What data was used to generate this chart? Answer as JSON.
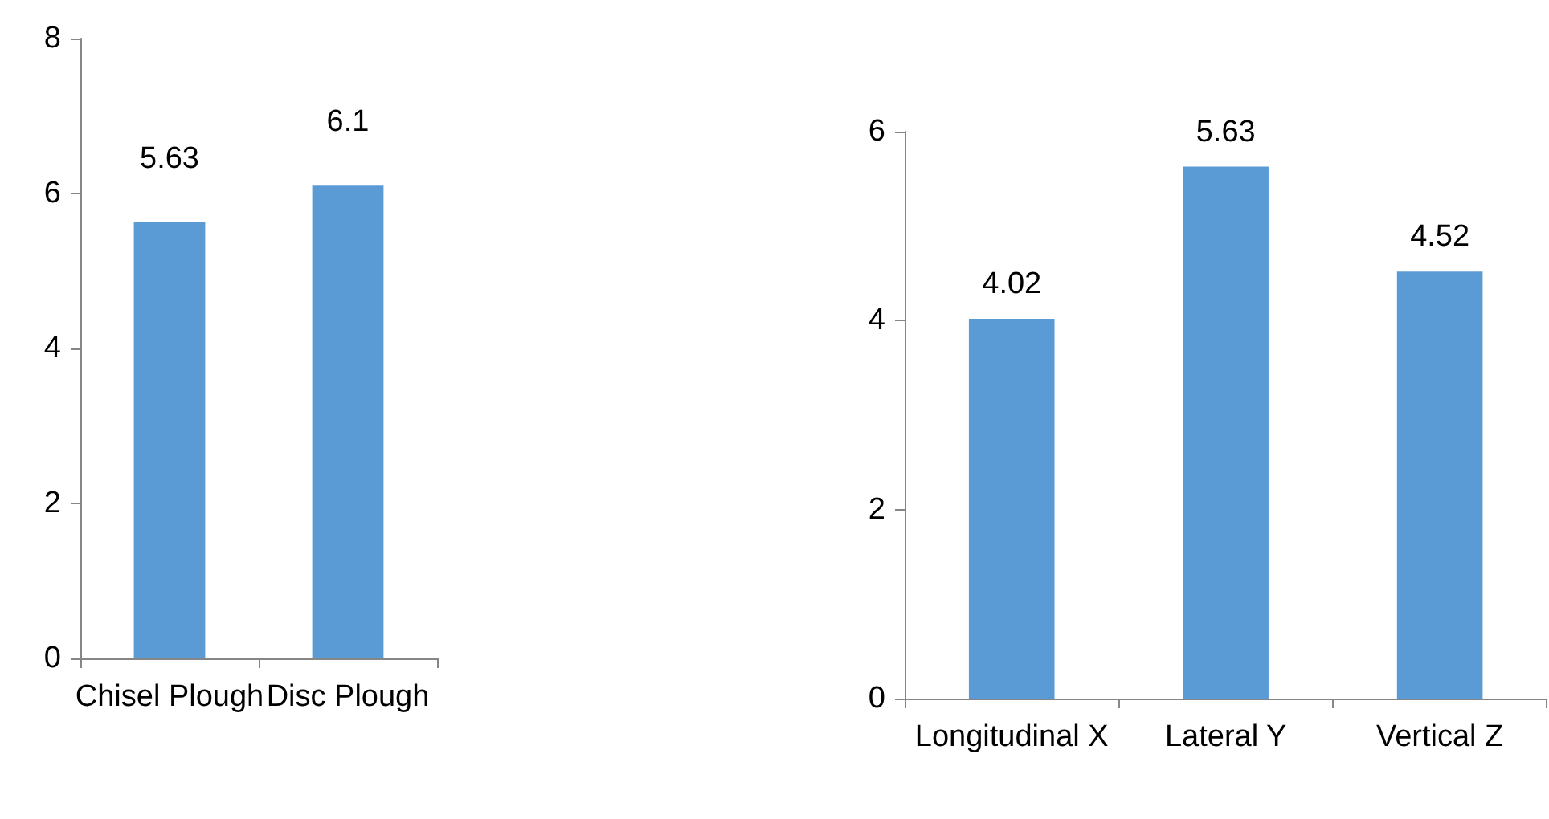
{
  "chart_data": [
    {
      "type": "bar",
      "categories": [
        "Chisel Plough",
        "Disc Plough"
      ],
      "values": [
        5.63,
        6.1
      ],
      "color": "#5b9bd5",
      "ylim": [
        0,
        8
      ],
      "yticks": [
        0,
        2,
        4,
        6,
        8
      ],
      "grid": false,
      "data_labels": true
    },
    {
      "type": "bar",
      "categories": [
        "Longitudinal X",
        "Lateral Y",
        "Vertical Z"
      ],
      "values": [
        4.02,
        5.63,
        4.52
      ],
      "color": "#5b9bd5",
      "ylim": [
        0,
        6
      ],
      "yticks": [
        0,
        2,
        4,
        6
      ],
      "grid": false,
      "data_labels": true
    }
  ]
}
